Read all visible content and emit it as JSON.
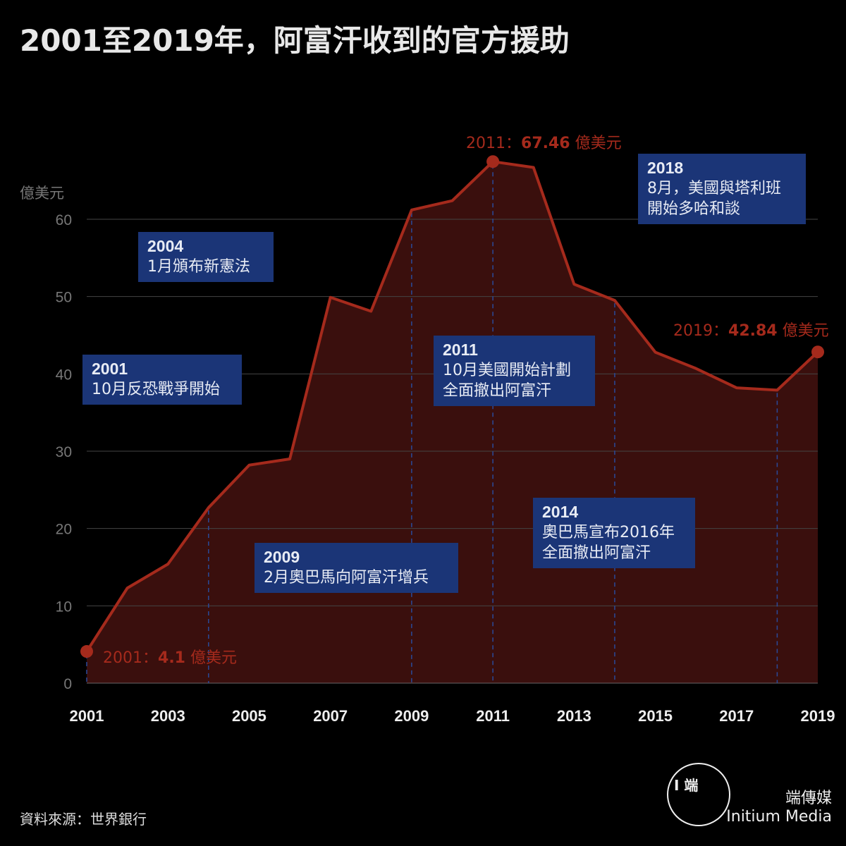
{
  "title": "2001至2019年，阿富汗收到的官方援助",
  "source": "資料來源：世界銀行",
  "brand": {
    "zh": "端傳媒",
    "en": "Initium Media",
    "logo_text": "I 端"
  },
  "colors": {
    "line": "#a52a1c",
    "fill": "#3a0f0d",
    "annotation_bg": "#1b3577",
    "grid": "#444444"
  },
  "chart_data": {
    "type": "area",
    "title": "2001至2019年，阿富汗收到的官方援助",
    "ylabel": "億美元",
    "xlabel": "",
    "ylim": [
      0,
      65
    ],
    "yticks": [
      0,
      10,
      20,
      30,
      40,
      50,
      60
    ],
    "xticks": [
      2001,
      2003,
      2005,
      2007,
      2009,
      2011,
      2013,
      2015,
      2017,
      2019
    ],
    "grid": true,
    "x": [
      2001,
      2002,
      2003,
      2004,
      2005,
      2006,
      2007,
      2008,
      2009,
      2010,
      2011,
      2012,
      2013,
      2014,
      2015,
      2016,
      2017,
      2018,
      2019
    ],
    "values": [
      4.1,
      12.3,
      15.4,
      22.7,
      28.2,
      29.0,
      49.9,
      48.1,
      61.2,
      62.4,
      67.46,
      66.7,
      51.6,
      49.5,
      42.8,
      40.7,
      38.2,
      37.9,
      42.84
    ],
    "point_labels": [
      {
        "year": "2001",
        "sep": "：",
        "value": "4.1",
        "unit": " 億美元"
      },
      {
        "year": "2011",
        "sep": "：",
        "value": "67.46",
        "unit": " 億美元"
      },
      {
        "year": "2019",
        "sep": "：",
        "value": "42.84",
        "unit": " 億美元"
      }
    ],
    "annotations": [
      {
        "x": 2001,
        "year": "2001",
        "text": "10月反恐戰爭開始"
      },
      {
        "x": 2004,
        "year": "2004",
        "text": "1月頒布新憲法"
      },
      {
        "x": 2009,
        "year": "2009",
        "text": "2月奧巴馬向阿富汗增兵"
      },
      {
        "x": 2011,
        "year": "2011",
        "text": "10月美國開始計劃\n全面撤出阿富汗"
      },
      {
        "x": 2014,
        "year": "2014",
        "text": "奧巴馬宣布2016年\n全面撤出阿富汗"
      },
      {
        "x": 2018,
        "year": "2018",
        "text": "8月，美國與塔利班\n開始多哈和談"
      }
    ]
  }
}
